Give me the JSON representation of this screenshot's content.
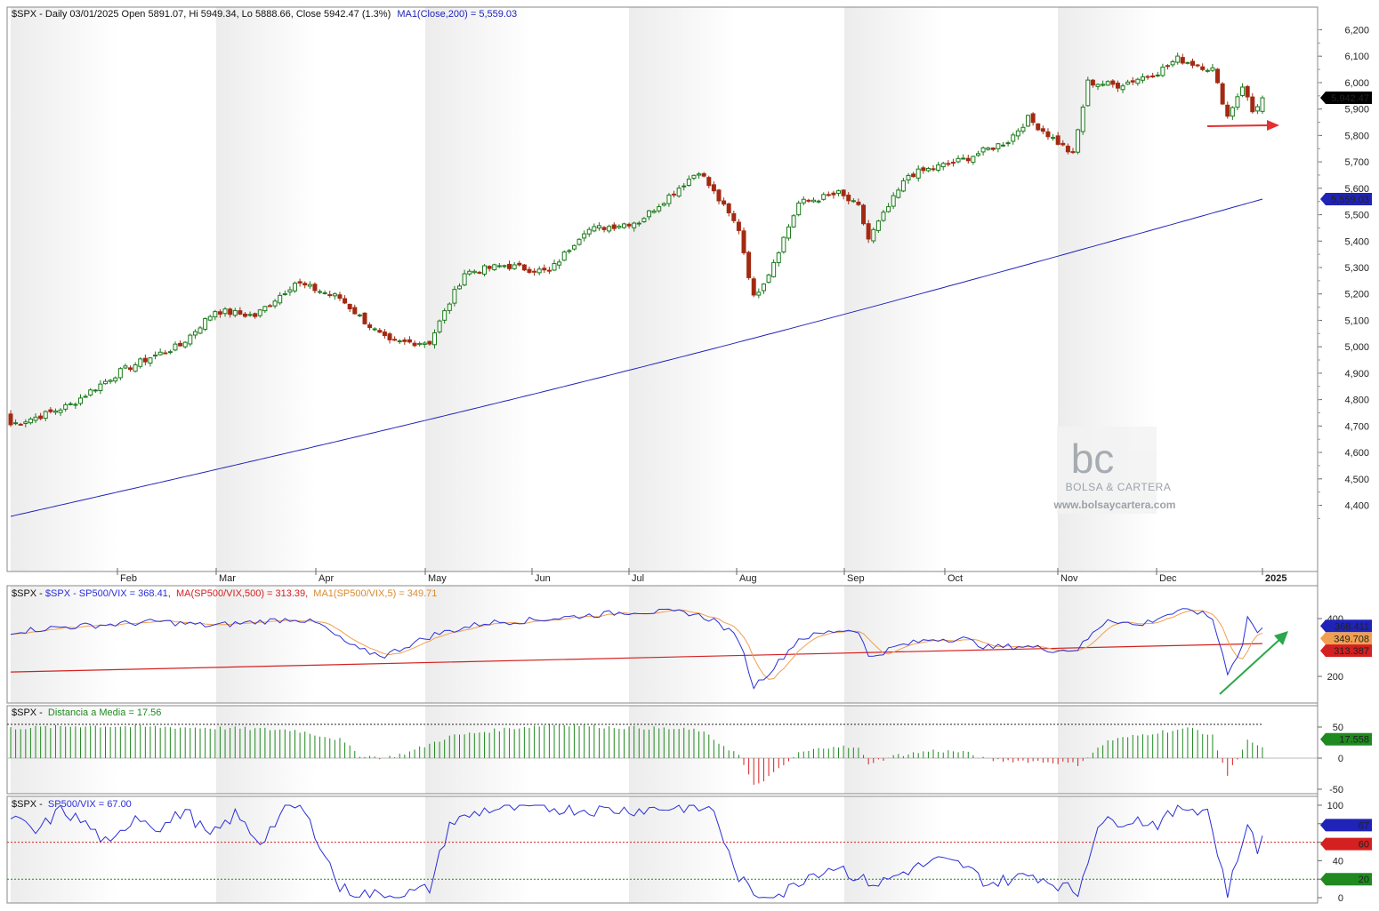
{
  "months": [
    "Feb",
    "Mar",
    "Apr",
    "May",
    "Jun",
    "Jul",
    "Aug",
    "Sep",
    "Oct",
    "Nov",
    "Dec",
    "2025"
  ],
  "watermark": {
    "brand": "BOLSA & CARTERA",
    "url": "www.bolsaycartera.com",
    "logo_text": "bc"
  },
  "colors": {
    "up": "#1a7a1a",
    "down": "#a32a12",
    "ma": "#1f23b8",
    "ratio": "#2b2fd6",
    "ratio_ma500": "#d42020",
    "ratio_ma5": "#f0a050",
    "dist_pos": "#1f8a1f",
    "dist_neg": "#d42020",
    "arrow_red": "#e53030",
    "arrow_green": "#2aa84a"
  },
  "panel1": {
    "header_prefix": "$SPX - Daily 03/01/2025 Open 5891.07, Hi 5949.34, Lo 5888.66, Close 5942.47 (1.3%)",
    "header_ma": "MA1(Close,200) = 5,559.03",
    "y_ticks": [
      "6,200",
      "6,100",
      "6,000",
      "5,900",
      "5,800",
      "5,700",
      "5,600",
      "5,500",
      "5,400",
      "5,300",
      "5,200",
      "5,100",
      "5,000",
      "4,900",
      "4,800",
      "4,700",
      "4,600",
      "4,500",
      "4,400"
    ],
    "last_price": "5,942.47",
    "ma_value": "5,559.03"
  },
  "panel2": {
    "header_ratio": "$SPX - SP500/VIX = 368.41,",
    "header_ma500": "MA(SP500/VIX,500) = 313.39,",
    "header_ma5": "MA1(SP500/VIX,5) = 349.71",
    "y_ticks": [
      "400",
      "200"
    ],
    "label_ratio": "368.411",
    "label_ma5": "349.708",
    "label_ma500": "313.387"
  },
  "panel3": {
    "header_prefix": "$SPX -",
    "header_name": "Distancia a Media = 17.56",
    "y_ticks": [
      "50",
      "0",
      "-50"
    ],
    "label_value": "17.558"
  },
  "panel4": {
    "header_prefix": "$SPX -",
    "header_name": "SP500/VIX = 67.00",
    "y_ticks": [
      "100",
      "80",
      "60",
      "40",
      "20",
      "0"
    ],
    "label_value": "67",
    "label_upper": "60",
    "label_lower": "20"
  },
  "chart_data": [
    {
      "type": "candlestick",
      "title": "$SPX - Daily 03/01/2025 Open 5891.07, Hi 5949.34, Lo 5888.66, Close 5942.47 (1.3%)",
      "series": [
        {
          "name": "$SPX",
          "x": [
            "2024-01-03",
            "2024-01-18",
            "2024-02-01",
            "2024-02-15",
            "2024-03-01",
            "2024-03-15",
            "2024-04-01",
            "2024-04-15",
            "2024-05-01",
            "2024-05-15",
            "2024-06-03",
            "2024-06-17",
            "2024-07-01",
            "2024-07-16",
            "2024-08-01",
            "2024-08-05",
            "2024-08-15",
            "2024-09-03",
            "2024-09-06",
            "2024-10-01",
            "2024-10-18",
            "2024-11-01",
            "2024-11-11",
            "2024-12-02",
            "2024-12-06",
            "2024-12-18",
            "2024-12-31",
            "2025-01-03"
          ],
          "close": [
            4705,
            4780,
            4906,
            5005,
            5137,
            5117,
            5243,
            5061,
            5018,
            5308,
            5283,
            5473,
            5475,
            5667,
            5446,
            5186,
            5543,
            5528,
            5408,
            5708,
            5864,
            5728,
            6001,
            6047,
            6090,
            5872,
            5881,
            5942
          ]
        },
        {
          "name": "MA1(Close,200)",
          "x": [
            "2024-01-03",
            "2024-03-01",
            "2024-05-01",
            "2024-07-01",
            "2024-09-03",
            "2024-11-01",
            "2025-01-03"
          ],
          "values": [
            4360,
            4520,
            4700,
            4880,
            5120,
            5340,
            5559.03
          ]
        }
      ],
      "ylim": [
        4340,
        6240
      ]
    },
    {
      "type": "line",
      "title": "$SPX - SP500/VIX = 368.41, MA(SP500/VIX,500) = 313.39, MA1(SP500/VIX,5) = 349.71",
      "series": [
        {
          "name": "SP500/VIX",
          "x": [
            "2024-01-03",
            "2024-02-01",
            "2024-04-01",
            "2024-04-19",
            "2024-06-03",
            "2024-07-01",
            "2024-08-05",
            "2024-08-30",
            "2024-10-01",
            "2024-11-15",
            "2024-12-06",
            "2024-12-18",
            "2024-12-26",
            "2025-01-03"
          ],
          "values": [
            360,
            380,
            400,
            270,
            390,
            420,
            160,
            365,
            300,
            300,
            430,
            220,
            400,
            368.41
          ]
        },
        {
          "name": "MA(SP500/VIX,500)",
          "x": [
            "2024-01-03",
            "2025-01-03"
          ],
          "values": [
            215,
            313.39
          ]
        },
        {
          "name": "MA1(SP500/VIX,5)",
          "x": [
            "2024-12-31",
            "2025-01-03"
          ],
          "values": [
            340,
            349.71
          ]
        }
      ]
    },
    {
      "type": "bar",
      "title": "$SPX - Distancia a Media = 17.56",
      "series": [
        {
          "name": "Distancia a Media",
          "x": [
            "2024-01-03",
            "2024-03-01",
            "2024-05-01",
            "2024-07-16",
            "2024-08-05",
            "2024-09-03",
            "2024-10-15",
            "2024-11-01",
            "2024-12-06",
            "2024-12-18",
            "2025-01-03"
          ],
          "values": [
            50,
            45,
            55,
            50,
            -45,
            12,
            -5,
            -10,
            52,
            -30,
            17.56
          ]
        }
      ],
      "ylim": [
        -60,
        70
      ]
    },
    {
      "type": "line",
      "title": "$SPX - SP500/VIX = 67.00",
      "series": [
        {
          "name": "SP500/VIX",
          "x": [
            "2024-01-03",
            "2024-03-01",
            "2024-04-15",
            "2024-05-15",
            "2024-07-01",
            "2024-08-05",
            "2024-09-03",
            "2024-10-15",
            "2024-11-15",
            "2024-12-06",
            "2024-12-18",
            "2024-12-26",
            "2025-01-03"
          ],
          "values": [
            85,
            95,
            5,
            95,
            90,
            2,
            30,
            40,
            85,
            95,
            5,
            85,
            67
          ]
        }
      ],
      "ylim": [
        0,
        100
      ]
    }
  ]
}
